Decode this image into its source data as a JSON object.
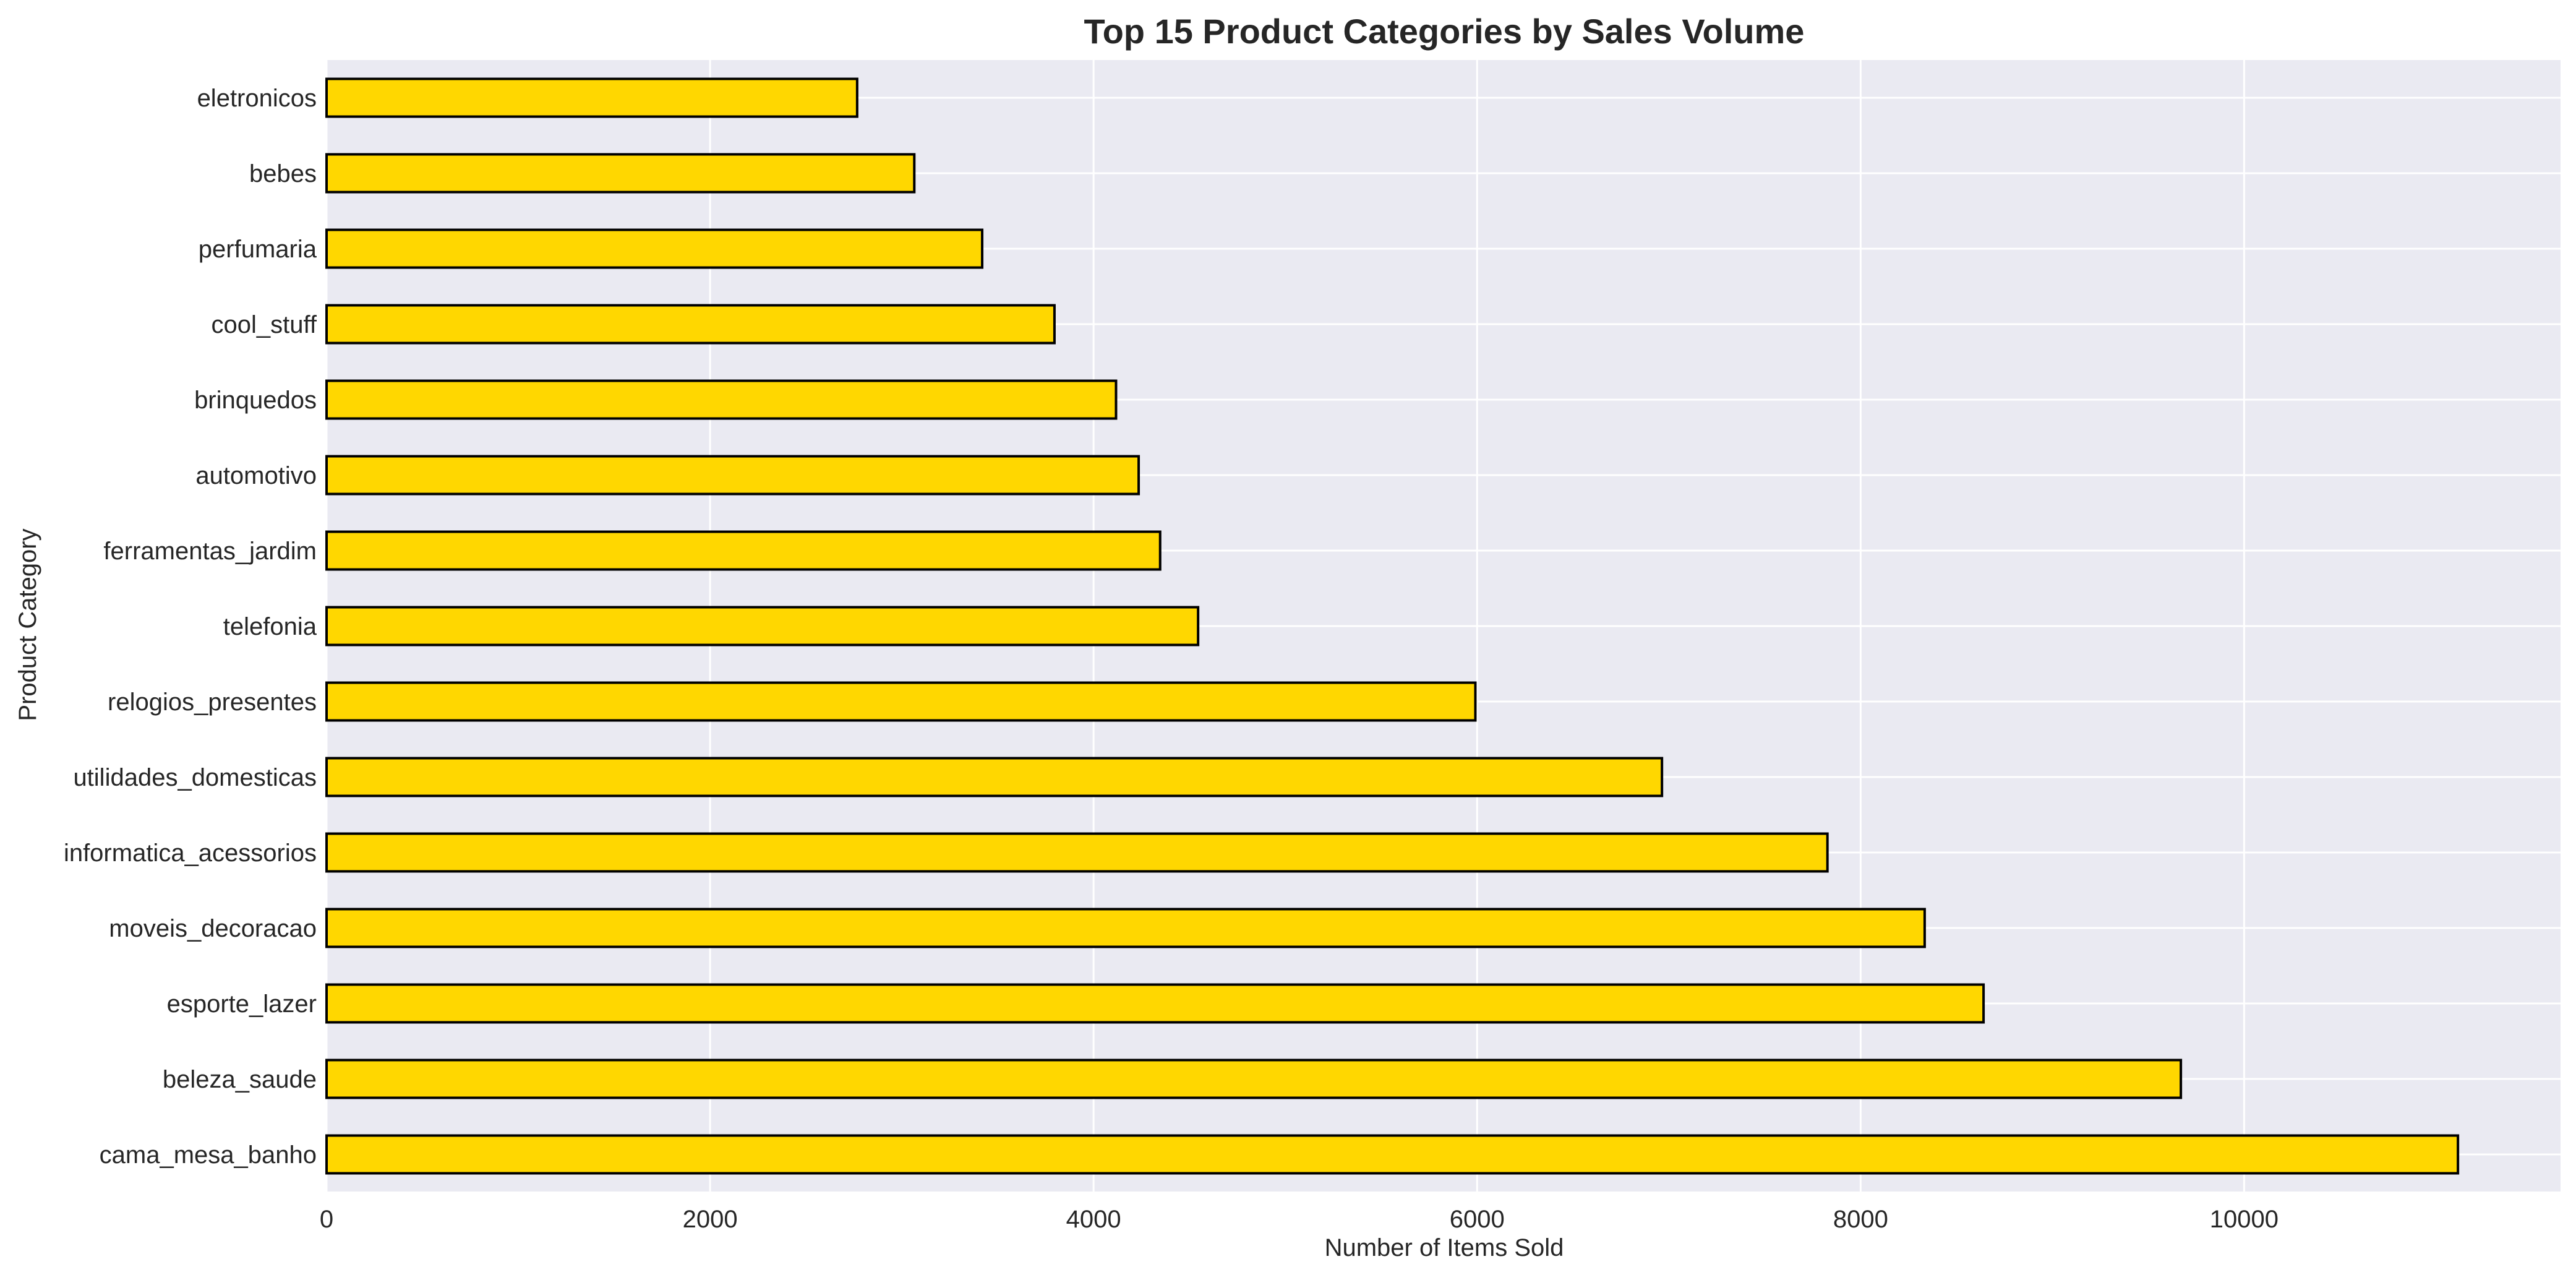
{
  "chart_data": {
    "type": "bar",
    "orientation": "horizontal",
    "title": "Top 15 Product Categories by Sales Volume",
    "xlabel": "Number of Items Sold",
    "ylabel": "Product Category",
    "xlim": [
      0,
      11650
    ],
    "xticks": [
      0,
      2000,
      4000,
      6000,
      8000,
      10000
    ],
    "grid": true,
    "bar_color": "#FFD700",
    "bar_edge_color": "#000000",
    "background_color": "#EAEAF2",
    "categories": [
      "cama_mesa_banho",
      "beleza_saude",
      "esporte_lazer",
      "moveis_decoracao",
      "informatica_acessorios",
      "utilidades_domesticas",
      "relogios_presentes",
      "telefonia",
      "ferramentas_jardim",
      "automotivo",
      "brinquedos",
      "cool_stuff",
      "perfumaria",
      "bebes",
      "eletronicos"
    ],
    "values": [
      11115,
      9670,
      8641,
      8334,
      7827,
      6964,
      5991,
      4545,
      4347,
      4235,
      4117,
      3796,
      3419,
      3065,
      2767
    ]
  }
}
